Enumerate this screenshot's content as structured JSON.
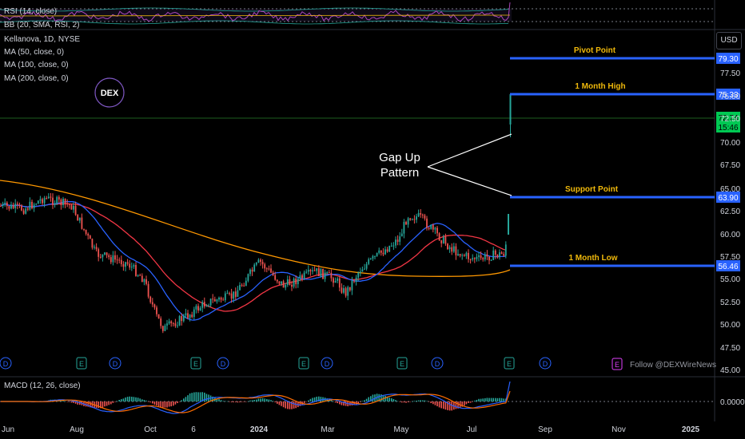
{
  "header": {
    "symbol": "Kellanova, 1D, NYSE",
    "rsi_label": "RSI (14, close)",
    "bb_label": "BB (20, SMA, RSI, 2)",
    "macd_label": "MACD (12, 26, close)",
    "currency": "USD",
    "logo_text": "DEX",
    "footer_note": "Follow @DEXWireNews"
  },
  "moving_averages": [
    {
      "label": "MA (50, close, 0)",
      "color": "#2962ff"
    },
    {
      "label": "MA (100, close, 0)",
      "color": "#f23645"
    },
    {
      "label": "MA (200, close, 0)",
      "color": "#ff9800"
    }
  ],
  "annotations": {
    "gap_up_line1": "Gap Up",
    "gap_up_line2": "Pattern"
  },
  "colors": {
    "up": "#26a69a",
    "down": "#ef5350",
    "level_line": "#2962ff",
    "level_text": "#f0b90b",
    "price_tag": "#00c853",
    "macd": "#2962ff",
    "signal": "#ff6d00"
  },
  "chart_data": {
    "type": "candlestick",
    "x_labels": [
      "Jun",
      "Aug",
      "Oct",
      "6",
      "2024",
      "Mar",
      "May",
      "Jul",
      "Sep",
      "Nov",
      "2025"
    ],
    "y_ticks": [
      "77.50",
      "75.00",
      "72.50",
      "70.00",
      "67.50",
      "65.00",
      "62.50",
      "60.00",
      "57.50",
      "55.00",
      "52.50",
      "50.00",
      "47.50",
      "45.00"
    ],
    "y_range": [
      45,
      80
    ],
    "levels": [
      {
        "name": "Pivot Point",
        "value": 79.3,
        "tag": "79.30"
      },
      {
        "name": "1 Month High",
        "value": 75.33,
        "tag": "75.33"
      },
      {
        "name": "Support Point",
        "value": 63.9,
        "tag": "63.90"
      },
      {
        "name": "1 Month Low",
        "value": 56.46,
        "tag": "56.46"
      }
    ],
    "last_price": {
      "value": 72.74,
      "tag": "72.74",
      "countdown": "15:46"
    },
    "price_path": [
      {
        "x": "Jun",
        "close": 63.0
      },
      {
        "x": "Jul",
        "close": 63.8
      },
      {
        "x": "Aug",
        "close": 61.5
      },
      {
        "x": "Sep",
        "close": 57.0
      },
      {
        "x": "Oct",
        "close": 50.5
      },
      {
        "x": "Nov",
        "close": 52.5
      },
      {
        "x": "Dec",
        "close": 56.0
      },
      {
        "x": "2024",
        "close": 55.5
      },
      {
        "x": "Feb",
        "close": 56.5
      },
      {
        "x": "Mar",
        "close": 54.0
      },
      {
        "x": "Apr",
        "close": 58.0
      },
      {
        "x": "May",
        "close": 62.5
      },
      {
        "x": "Jun",
        "close": 58.5
      },
      {
        "x": "Jul",
        "close": 57.5
      },
      {
        "x": "Aug",
        "close": 72.74
      }
    ],
    "macd_zero_label": "0.0000",
    "event_markers": [
      "D",
      "E",
      "D",
      "E",
      "D",
      "E",
      "D",
      "E",
      "D",
      "E",
      "D",
      "E"
    ]
  }
}
